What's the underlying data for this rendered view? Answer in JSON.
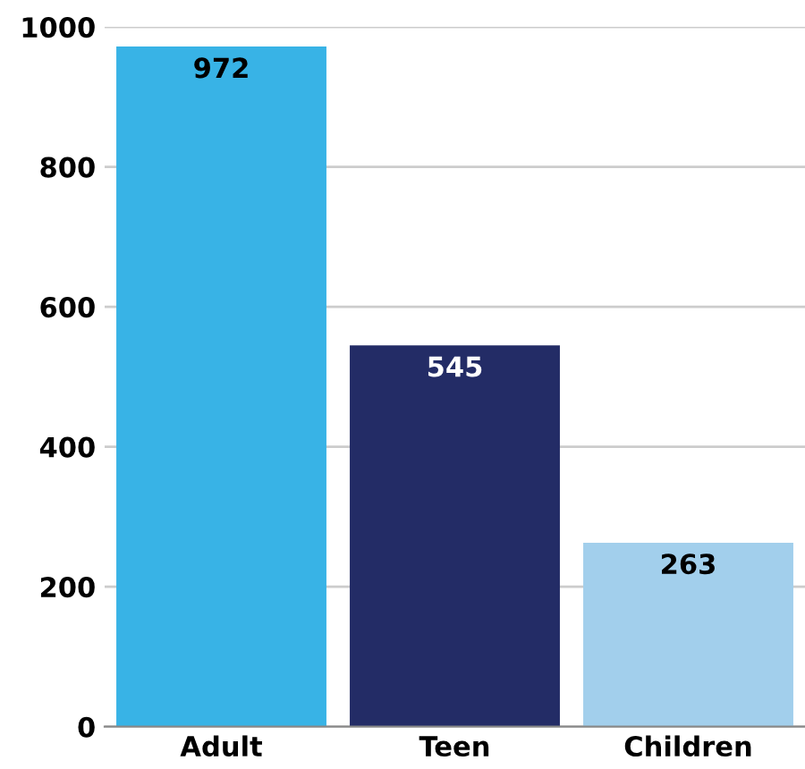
{
  "chart_data": {
    "type": "bar",
    "categories": [
      "Adult",
      "Teen",
      "Children"
    ],
    "values": [
      972,
      545,
      263
    ],
    "colors": [
      "#38b3e6",
      "#232c66",
      "#a2cfec"
    ],
    "data_labels": true,
    "ylim": [
      0,
      1000
    ],
    "yticks": [
      0,
      200,
      400,
      600,
      800,
      1000
    ],
    "grid": "y"
  }
}
